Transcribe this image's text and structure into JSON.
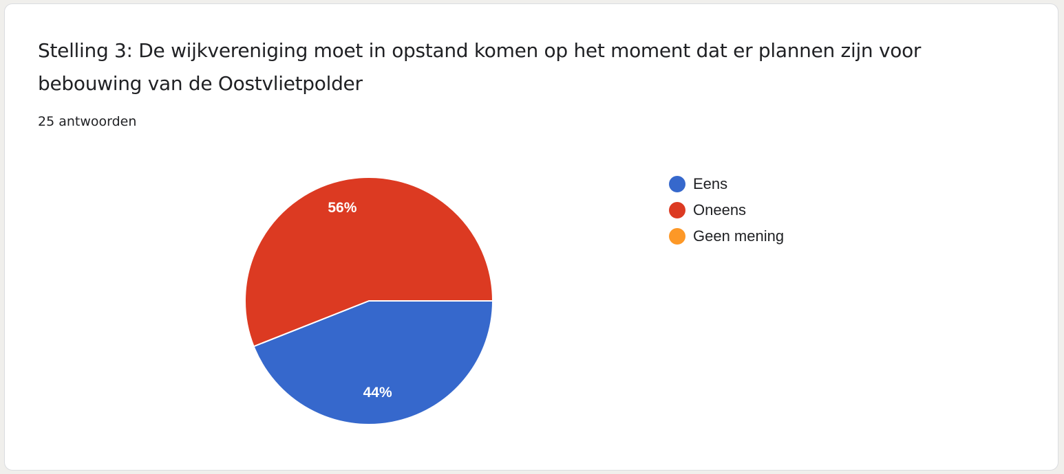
{
  "card": {
    "title": "Stelling 3: De wijkvereniging moet in opstand komen op het moment dat er plannen zijn voor bebouwing van de Oostvlietpolder",
    "response_count": "25 antwoorden"
  },
  "chart_data": {
    "type": "pie",
    "title": "Stelling 3: De wijkvereniging moet in opstand komen op het moment dat er plannen zijn voor bebouwing van de Oostvlietpolder",
    "categories": [
      "Eens",
      "Oneens",
      "Geen mening"
    ],
    "values": [
      44,
      56,
      0
    ],
    "data_labels": [
      "44%",
      "56%",
      ""
    ],
    "colors": [
      "#3668cc",
      "#dc3a22",
      "#fd9827"
    ],
    "legend_position": "right",
    "start_angle": "3 o'clock, clockwise",
    "total_responses": 25
  }
}
